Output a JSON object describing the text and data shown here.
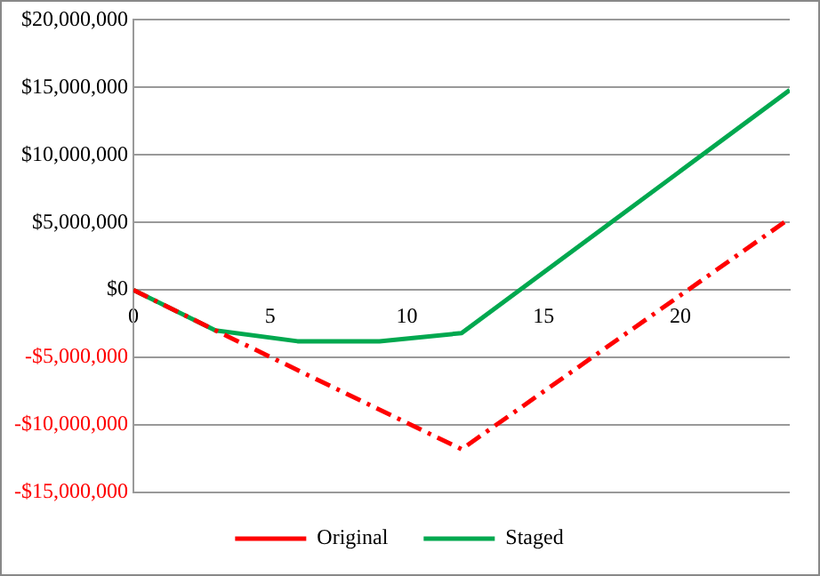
{
  "chart_data": {
    "type": "line",
    "xlim": [
      0,
      24
    ],
    "xticks": [
      0,
      5,
      10,
      15,
      20
    ],
    "ylim": [
      -15000000,
      20000000
    ],
    "yticks": [
      {
        "value": -15000000,
        "label": "-$15,000,000"
      },
      {
        "value": -10000000,
        "label": "-$10,000,000"
      },
      {
        "value": -5000000,
        "label": "-$5,000,000"
      },
      {
        "value": 0,
        "label": "$0"
      },
      {
        "value": 5000000,
        "label": "$5,000,000"
      },
      {
        "value": 10000000,
        "label": "$10,000,000"
      },
      {
        "value": 15000000,
        "label": "$15,000,000"
      },
      {
        "value": 20000000,
        "label": "$20,000,000"
      }
    ],
    "series": [
      {
        "name": "Original",
        "color": "#ff0000",
        "line_style": "dashdot",
        "x": [
          0,
          3,
          12,
          24
        ],
        "values": [
          0,
          -3000000,
          -11800000,
          5300000
        ]
      },
      {
        "name": "Staged",
        "color": "#00a84f",
        "line_style": "solid",
        "x": [
          0,
          3,
          6,
          9,
          12,
          24
        ],
        "values": [
          0,
          -3000000,
          -3800000,
          -3800000,
          -3200000,
          14800000
        ]
      }
    ],
    "grid": "y",
    "legend": "bottom",
    "marker": "none"
  }
}
